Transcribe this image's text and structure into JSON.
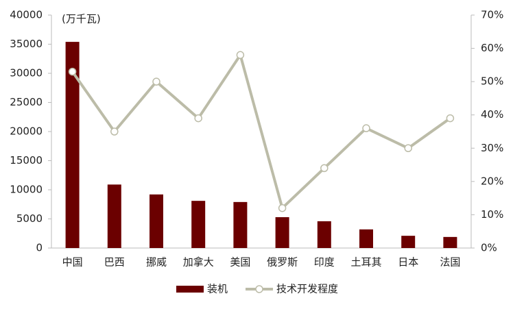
{
  "chart_data": {
    "type": "bar_line",
    "unit_label": "(万千瓦)",
    "categories": [
      "中国",
      "巴西",
      "挪威",
      "加拿大",
      "美国",
      "俄罗斯",
      "印度",
      "土耳其",
      "日本",
      "法国"
    ],
    "series": [
      {
        "name": "装机",
        "type": "bar",
        "color": "#6b0000",
        "values": [
          35400,
          10900,
          9200,
          8100,
          7900,
          5300,
          4600,
          3200,
          2100,
          1900
        ]
      },
      {
        "name": "技术开发程度",
        "type": "line",
        "axis": "y2",
        "color": "#bcbca8",
        "values": [
          53,
          35,
          50,
          39,
          58,
          12,
          24,
          36,
          30,
          39
        ]
      }
    ],
    "ylim": [
      0,
      40000
    ],
    "yticks": [
      0,
      5000,
      10000,
      15000,
      20000,
      25000,
      30000,
      35000,
      40000
    ],
    "y2lim": [
      0,
      70
    ],
    "y2ticks": [
      {
        "value": 0,
        "label": "0%"
      },
      {
        "value": 10,
        "label": "10%"
      },
      {
        "value": 20,
        "label": "20%"
      },
      {
        "value": 30,
        "label": "30%"
      },
      {
        "value": 40,
        "label": "40%"
      },
      {
        "value": 50,
        "label": "50%"
      },
      {
        "value": 60,
        "label": "60%"
      },
      {
        "value": 70,
        "label": "70%"
      }
    ],
    "grid": false,
    "legend": "bottom"
  }
}
